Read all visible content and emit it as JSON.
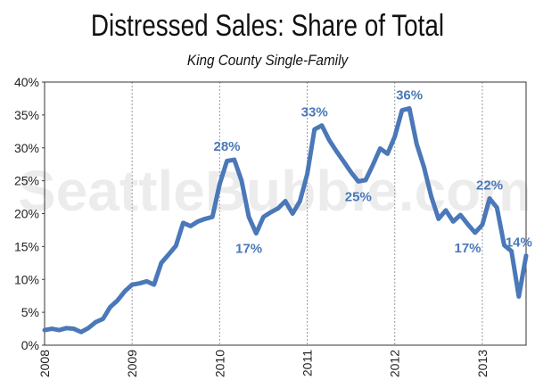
{
  "watermark": "SeattleBubble.com",
  "chart_data": {
    "type": "line",
    "title": "Distressed Sales: Share of Total",
    "subtitle": "King County Single-Family",
    "xlabel": "",
    "ylabel": "",
    "ylim": [
      0,
      40
    ],
    "xlim": [
      2008,
      2013.5
    ],
    "yticks": [
      {
        "value": 0,
        "label": "0%"
      },
      {
        "value": 5,
        "label": "5%"
      },
      {
        "value": 10,
        "label": "10%"
      },
      {
        "value": 15,
        "label": "15%"
      },
      {
        "value": 20,
        "label": "20%"
      },
      {
        "value": 25,
        "label": "25%"
      },
      {
        "value": 30,
        "label": "30%"
      },
      {
        "value": 35,
        "label": "35%"
      },
      {
        "value": 40,
        "label": "40%"
      }
    ],
    "xticks": [
      {
        "value": 2008,
        "label": "2008"
      },
      {
        "value": 2009,
        "label": "2009"
      },
      {
        "value": 2010,
        "label": "2010"
      },
      {
        "value": 2011,
        "label": "2011"
      },
      {
        "value": 2012,
        "label": "2012"
      },
      {
        "value": 2013,
        "label": "2013"
      }
    ],
    "grid": {
      "vertical": "dashed",
      "horizontal": false
    },
    "color": "#4a78b8",
    "series": [
      {
        "x": [
          2008.0,
          2008.083,
          2008.167,
          2008.25,
          2008.333,
          2008.417,
          2008.5,
          2008.583,
          2008.667,
          2008.75,
          2008.833,
          2008.917,
          2009.0,
          2009.083,
          2009.167,
          2009.25,
          2009.333,
          2009.417,
          2009.5,
          2009.583,
          2009.667,
          2009.75,
          2009.833,
          2009.917,
          2010.0,
          2010.083,
          2010.167,
          2010.25,
          2010.333,
          2010.417,
          2010.5,
          2010.583,
          2010.667,
          2010.75,
          2010.833,
          2010.917,
          2011.0,
          2011.083,
          2011.167,
          2011.25,
          2011.333,
          2011.417,
          2011.5,
          2011.583,
          2011.667,
          2011.75,
          2011.833,
          2011.917,
          2012.0,
          2012.083,
          2012.167,
          2012.25,
          2012.333,
          2012.417,
          2012.5,
          2012.583,
          2012.667,
          2012.75,
          2012.833,
          2012.917,
          2013.0,
          2013.083,
          2013.167,
          2013.25,
          2013.333,
          2013.417
        ],
        "values": [
          2.3,
          2.5,
          2.3,
          2.6,
          2.5,
          2.0,
          2.6,
          3.5,
          4.0,
          5.8,
          6.8,
          8.2,
          9.2,
          9.4,
          9.7,
          9.2,
          12.5,
          13.8,
          15.1,
          18.6,
          18.1,
          18.8,
          19.2,
          19.5,
          24.5,
          28.0,
          28.2,
          25.0,
          19.5,
          17.0,
          19.5,
          20.2,
          20.8,
          21.9,
          20.0,
          21.9,
          26.0,
          32.8,
          33.4,
          31.2,
          29.5,
          27.9,
          26.3,
          24.9,
          25.1,
          27.4,
          29.9,
          29.1,
          31.7,
          35.7,
          36.0,
          30.6,
          27.1,
          22.6,
          19.2,
          20.5,
          18.8,
          19.8,
          18.4,
          17.1,
          18.3,
          22.3,
          20.9,
          15.2,
          14.3,
          7.4
        ],
        "extra": {
          "x": 2013.5,
          "value": 13.6
        }
      }
    ],
    "annotations": [
      {
        "x": 2010.083,
        "y": 28.2,
        "label": "28%",
        "pos": "above"
      },
      {
        "x": 2010.333,
        "y": 17.0,
        "label": "17%",
        "pos": "below"
      },
      {
        "x": 2011.083,
        "y": 33.4,
        "label": "33%",
        "pos": "above"
      },
      {
        "x": 2011.583,
        "y": 24.9,
        "label": "25%",
        "pos": "below"
      },
      {
        "x": 2012.167,
        "y": 36.0,
        "label": "36%",
        "pos": "above"
      },
      {
        "x": 2012.833,
        "y": 17.1,
        "label": "17%",
        "pos": "below"
      },
      {
        "x": 2013.083,
        "y": 22.3,
        "label": "22%",
        "pos": "above"
      },
      {
        "x": 2013.417,
        "y": 13.6,
        "label": "14%",
        "pos": "above"
      }
    ]
  }
}
